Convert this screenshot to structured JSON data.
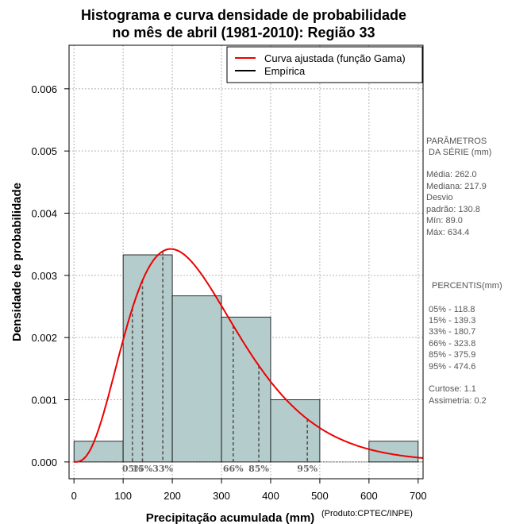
{
  "chart_data": {
    "type": "histogram",
    "title": [
      "Histograma e curva densidade de probabilidade",
      "no mês de abril (1981-2010): Região 33"
    ],
    "xlabel": "Precipitação acumulada (mm)",
    "ylabel": "Densidade de probabilidade",
    "credit": "(Produto:CPTEC/INPE)",
    "xlim": [
      -10,
      710
    ],
    "ylim": [
      -0.00027,
      0.0067
    ],
    "xticks": [
      0,
      100,
      200,
      300,
      400,
      500,
      600,
      700
    ],
    "xtick_labels": [
      "0",
      "100",
      "200",
      "300",
      "400",
      "500",
      "600",
      "700"
    ],
    "yticks": [
      0.0,
      0.001,
      0.002,
      0.003,
      0.004,
      0.005,
      0.006
    ],
    "ytick_labels": [
      "0.000",
      "0.001",
      "0.002",
      "0.003",
      "0.004",
      "0.005",
      "0.006"
    ],
    "grid": true,
    "histogram": {
      "bins": [
        [
          0,
          100
        ],
        [
          100,
          200
        ],
        [
          200,
          300
        ],
        [
          300,
          400
        ],
        [
          400,
          500
        ],
        [
          500,
          600
        ],
        [
          600,
          700
        ]
      ],
      "density": [
        0.000333,
        0.00333,
        0.00267,
        0.00233,
        0.001,
        0.0,
        0.000333
      ],
      "color": "#b4cccb"
    },
    "gamma_curve": {
      "name": "Curva ajustada (função Gama)",
      "color": "#ee0000",
      "mean": 262.0,
      "sd": 130.8
    },
    "percentiles": [
      {
        "label": "05%",
        "value": 118.8
      },
      {
        "label": "15%",
        "value": 139.3
      },
      {
        "label": "33%",
        "value": 180.7
      },
      {
        "label": "66%",
        "value": 323.8
      },
      {
        "label": "85%",
        "value": 375.9
      },
      {
        "label": "95%",
        "value": 474.6
      }
    ],
    "legend": [
      {
        "label": "Curva ajustada (função Gama)",
        "color": "#ee0000"
      },
      {
        "label": "Empírica",
        "color": "#000000"
      }
    ],
    "legend_position": "top-right"
  },
  "side_panel": {
    "params_title_1": "PARÂMETROS",
    "params_title_2": "DA SÉRIE (mm)",
    "params": [
      "Média:  262.0",
      "Mediana:  217.9",
      "Desvio",
      "padrão:  130.8",
      "Mín:  89.0",
      "Máx:  634.4"
    ],
    "percentis_title": "PERCENTIS(mm)",
    "percentis": [
      "05% -   118.8",
      "15% -   139.3",
      "33% -   180.7",
      "66% -   323.8",
      "85% -   375.9",
      "95% -   474.6"
    ],
    "stats": [
      "Curtose:  1.1",
      "Assimetria:  0.2"
    ]
  }
}
